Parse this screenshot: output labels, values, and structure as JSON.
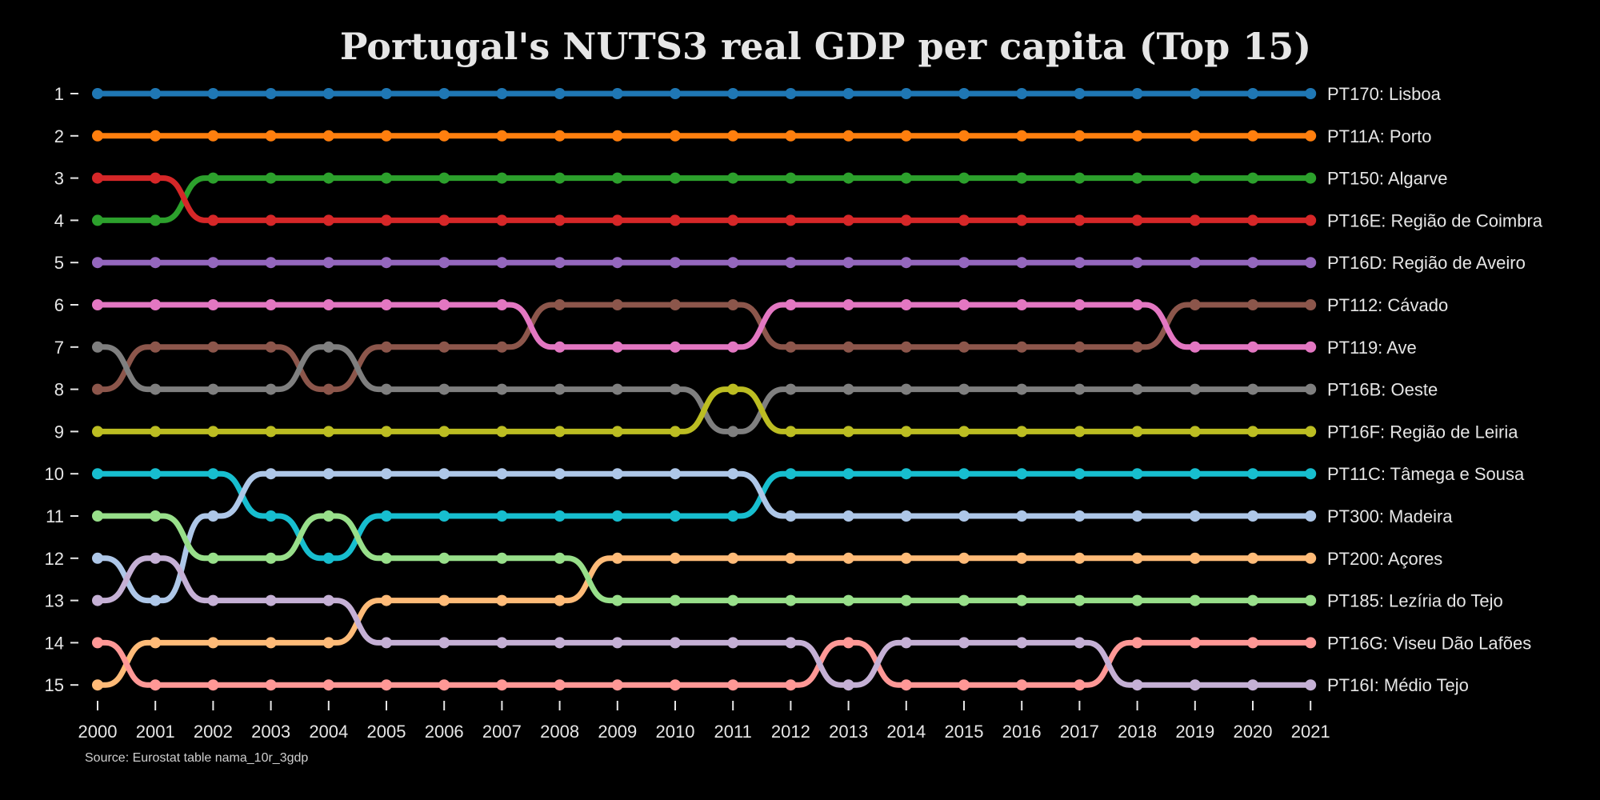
{
  "chart_data": {
    "type": "line",
    "subtype": "bump",
    "title": "Portugal's NUTS3 real GDP per capita (Top 15)",
    "source": "Source: Eurostat table nama_10r_3gdp",
    "xlabel": "",
    "ylabel": "",
    "x": [
      2000,
      2001,
      2002,
      2003,
      2004,
      2005,
      2006,
      2007,
      2008,
      2009,
      2010,
      2011,
      2012,
      2013,
      2014,
      2015,
      2016,
      2017,
      2018,
      2019,
      2020,
      2021
    ],
    "x_tick_labels": [
      "2000",
      "2001",
      "2002",
      "2003",
      "2004",
      "2005",
      "2006",
      "2007",
      "2008",
      "2009",
      "2010",
      "2011",
      "2012",
      "2013",
      "2014",
      "2015",
      "2016",
      "2017",
      "2018",
      "2019",
      "2020",
      "2021"
    ],
    "y_tick_labels": [
      "1",
      "2",
      "3",
      "4",
      "5",
      "6",
      "7",
      "8",
      "9",
      "10",
      "11",
      "12",
      "13",
      "14",
      "15"
    ],
    "ylim": [
      1,
      15
    ],
    "y_inverted": true,
    "grid": false,
    "legend": "right-end labels",
    "series": [
      {
        "name": "PT170: Lisboa",
        "color": "#1f77b4",
        "values": [
          1,
          1,
          1,
          1,
          1,
          1,
          1,
          1,
          1,
          1,
          1,
          1,
          1,
          1,
          1,
          1,
          1,
          1,
          1,
          1,
          1,
          1
        ]
      },
      {
        "name": "PT11A: Porto",
        "color": "#ff7f0e",
        "values": [
          2,
          2,
          2,
          2,
          2,
          2,
          2,
          2,
          2,
          2,
          2,
          2,
          2,
          2,
          2,
          2,
          2,
          2,
          2,
          2,
          2,
          2
        ]
      },
      {
        "name": "PT150: Algarve",
        "color": "#2ca02c",
        "values": [
          4,
          4,
          3,
          3,
          3,
          3,
          3,
          3,
          3,
          3,
          3,
          3,
          3,
          3,
          3,
          3,
          3,
          3,
          3,
          3,
          3,
          3
        ]
      },
      {
        "name": "PT16E: Região de Coimbra",
        "color": "#d62728",
        "values": [
          3,
          3,
          4,
          4,
          4,
          4,
          4,
          4,
          4,
          4,
          4,
          4,
          4,
          4,
          4,
          4,
          4,
          4,
          4,
          4,
          4,
          4
        ]
      },
      {
        "name": "PT16D: Região de Aveiro",
        "color": "#9467bd",
        "values": [
          5,
          5,
          5,
          5,
          5,
          5,
          5,
          5,
          5,
          5,
          5,
          5,
          5,
          5,
          5,
          5,
          5,
          5,
          5,
          5,
          5,
          5
        ]
      },
      {
        "name": "PT112: Cávado",
        "color": "#8c564b",
        "values": [
          8,
          7,
          7,
          7,
          8,
          7,
          7,
          7,
          6,
          6,
          6,
          6,
          7,
          7,
          7,
          7,
          7,
          7,
          7,
          6,
          6,
          6
        ]
      },
      {
        "name": "PT119: Ave",
        "color": "#e377c2",
        "values": [
          6,
          6,
          6,
          6,
          6,
          6,
          6,
          6,
          7,
          7,
          7,
          7,
          6,
          6,
          6,
          6,
          6,
          6,
          6,
          7,
          7,
          7
        ]
      },
      {
        "name": "PT16B: Oeste",
        "color": "#7f7f7f",
        "values": [
          7,
          8,
          8,
          8,
          7,
          8,
          8,
          8,
          8,
          8,
          8,
          9,
          8,
          8,
          8,
          8,
          8,
          8,
          8,
          8,
          8,
          8
        ]
      },
      {
        "name": "PT16F: Região de Leiria",
        "color": "#bcbd22",
        "values": [
          9,
          9,
          9,
          9,
          9,
          9,
          9,
          9,
          9,
          9,
          9,
          8,
          9,
          9,
          9,
          9,
          9,
          9,
          9,
          9,
          9,
          9
        ]
      },
      {
        "name": "PT11C: Tâmega e Sousa",
        "color": "#17becf",
        "values": [
          10,
          10,
          10,
          11,
          12,
          11,
          11,
          11,
          11,
          11,
          11,
          11,
          10,
          10,
          10,
          10,
          10,
          10,
          10,
          10,
          10,
          10
        ]
      },
      {
        "name": "PT300: Madeira",
        "color": "#aec7e8",
        "values": [
          12,
          13,
          11,
          10,
          10,
          10,
          10,
          10,
          10,
          10,
          10,
          10,
          11,
          11,
          11,
          11,
          11,
          11,
          11,
          11,
          11,
          11
        ]
      },
      {
        "name": "PT200: Açores",
        "color": "#ffbb78",
        "values": [
          15,
          14,
          14,
          14,
          14,
          13,
          13,
          13,
          13,
          12,
          12,
          12,
          12,
          12,
          12,
          12,
          12,
          12,
          12,
          12,
          12,
          12
        ]
      },
      {
        "name": "PT185: Lezíria do Tejo",
        "color": "#98df8a",
        "values": [
          11,
          11,
          12,
          12,
          11,
          12,
          12,
          12,
          12,
          13,
          13,
          13,
          13,
          13,
          13,
          13,
          13,
          13,
          13,
          13,
          13,
          13
        ]
      },
      {
        "name": "PT16G: Viseu Dão Lafões",
        "color": "#ff9896",
        "values": [
          14,
          15,
          15,
          15,
          15,
          15,
          15,
          15,
          15,
          15,
          15,
          15,
          15,
          14,
          15,
          15,
          15,
          15,
          14,
          14,
          14,
          14
        ]
      },
      {
        "name": "PT16I: Médio Tejo",
        "color": "#c5b0d5",
        "values": [
          13,
          12,
          13,
          13,
          13,
          14,
          14,
          14,
          14,
          14,
          14,
          14,
          14,
          15,
          14,
          14,
          14,
          14,
          15,
          15,
          15,
          15
        ]
      }
    ]
  }
}
